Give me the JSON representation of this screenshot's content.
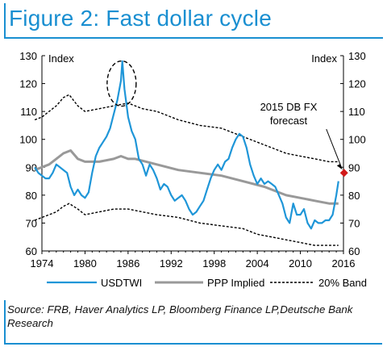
{
  "title": "Figure 2: Fast dollar cycle",
  "source": "Source: FRB, Haver Analytics LP, Bloomberg Finance LP,Deutsche Bank Research",
  "colors": {
    "accent": "#1a8fd1",
    "usdtwi": "#1f96d8",
    "ppp": "#999999",
    "band": "#000000",
    "forecast": "#d11a1a"
  },
  "chart_data": {
    "type": "line",
    "left_axis_label": "Index",
    "right_axis_label": "Index",
    "xlim": [
      1974,
      2016
    ],
    "ylim": [
      60,
      130
    ],
    "x_ticks": [
      "1974",
      "1980",
      "1986",
      "1992",
      "1998",
      "2004",
      "2010",
      "2016"
    ],
    "y_ticks": [
      "60",
      "70",
      "80",
      "90",
      "100",
      "110",
      "120",
      "130"
    ],
    "grid": false,
    "legend_position": "bottom",
    "series": [
      {
        "name": "USDTWI",
        "style": "solid",
        "x": [
          1973.0,
          1973.5,
          1974.0,
          1974.5,
          1975.0,
          1975.5,
          1976.0,
          1976.5,
          1977.0,
          1977.5,
          1978.0,
          1978.5,
          1979.0,
          1979.5,
          1980.0,
          1980.5,
          1981.0,
          1981.5,
          1982.0,
          1982.5,
          1983.0,
          1983.5,
          1984.0,
          1984.5,
          1985.0,
          1985.2,
          1985.5,
          1986.0,
          1986.5,
          1987.0,
          1987.5,
          1988.0,
          1988.5,
          1989.0,
          1989.5,
          1990.0,
          1990.5,
          1991.0,
          1991.5,
          1992.0,
          1992.5,
          1993.0,
          1993.5,
          1994.0,
          1994.5,
          1995.0,
          1995.5,
          1996.0,
          1996.5,
          1997.0,
          1997.5,
          1998.0,
          1998.5,
          1999.0,
          1999.5,
          2000.0,
          2000.5,
          2001.0,
          2001.5,
          2002.0,
          2002.5,
          2003.0,
          2003.5,
          2004.0,
          2004.5,
          2005.0,
          2005.5,
          2006.0,
          2006.5,
          2007.0,
          2007.5,
          2008.0,
          2008.5,
          2009.0,
          2009.5,
          2010.0,
          2010.5,
          2011.0,
          2011.5,
          2012.0,
          2012.5,
          2013.0,
          2013.5,
          2014.0,
          2014.5,
          2015.0,
          2015.3
        ],
        "y": [
          90,
          88,
          87,
          86,
          86,
          88,
          91,
          90,
          89,
          88,
          83,
          80,
          82,
          80,
          79,
          81,
          88,
          94,
          97,
          99,
          101,
          104,
          109,
          114,
          121,
          128,
          118,
          108,
          103,
          100,
          93,
          91,
          87,
          91,
          89,
          86,
          82,
          84,
          83,
          80,
          78,
          79,
          80,
          78,
          75,
          73,
          74,
          76,
          78,
          82,
          86,
          89,
          91,
          89,
          92,
          93,
          97,
          100,
          102,
          101,
          97,
          91,
          87,
          84,
          86,
          84,
          85,
          84,
          83,
          80,
          77,
          72,
          70,
          77,
          73,
          73,
          75,
          70,
          68,
          71,
          70,
          70,
          71,
          71,
          73,
          80,
          85
        ]
      },
      {
        "name": "PPP Implied",
        "style": "solid",
        "x": [
          1973,
          1975,
          1976,
          1977,
          1978,
          1979,
          1980,
          1982,
          1984,
          1985,
          1986,
          1987,
          1990,
          1993,
          1996,
          1999,
          2002,
          2005,
          2008,
          2010,
          2012,
          2014,
          2015.3
        ],
        "y": [
          89,
          91,
          93,
          95,
          96,
          93,
          92,
          92,
          93,
          94,
          93,
          93,
          91,
          89,
          88,
          87,
          85,
          83,
          80,
          79,
          78,
          77,
          77
        ]
      },
      {
        "name": "20% Band",
        "style": "dashed",
        "x": [
          1973,
          1974,
          1975,
          1976,
          1977,
          1977.8,
          1979,
          1980,
          1982,
          1984,
          1986,
          1988,
          1990,
          1993,
          1996,
          1999,
          2002,
          2004,
          2006,
          2008,
          2010,
          2012,
          2014,
          2015.3
        ],
        "y": [
          107,
          108,
          110,
          112,
          115,
          116,
          112,
          110,
          111,
          112,
          113,
          111,
          110,
          107,
          105,
          104,
          101,
          99,
          97,
          95,
          94,
          93,
          92,
          92
        ]
      },
      {
        "name": "20% Band (lower)",
        "style": "dashed",
        "x": [
          1973,
          1974,
          1975,
          1976,
          1977,
          1977.8,
          1979,
          1980,
          1982,
          1984,
          1986,
          1988,
          1990,
          1993,
          1996,
          1999,
          2002,
          2004,
          2006,
          2008,
          2010,
          2012,
          2014,
          2015.3
        ],
        "y": [
          71,
          72,
          73,
          74,
          76,
          77,
          75,
          73,
          74,
          75,
          75,
          74,
          73,
          72,
          70,
          69,
          68,
          66,
          65,
          64,
          63,
          62,
          62,
          62
        ]
      }
    ],
    "annotations": [
      {
        "text": "2015 DB FX forecast",
        "line1": "2015 DB FX",
        "line2": "forecast",
        "x": 2015.3,
        "y": 88
      }
    ]
  }
}
